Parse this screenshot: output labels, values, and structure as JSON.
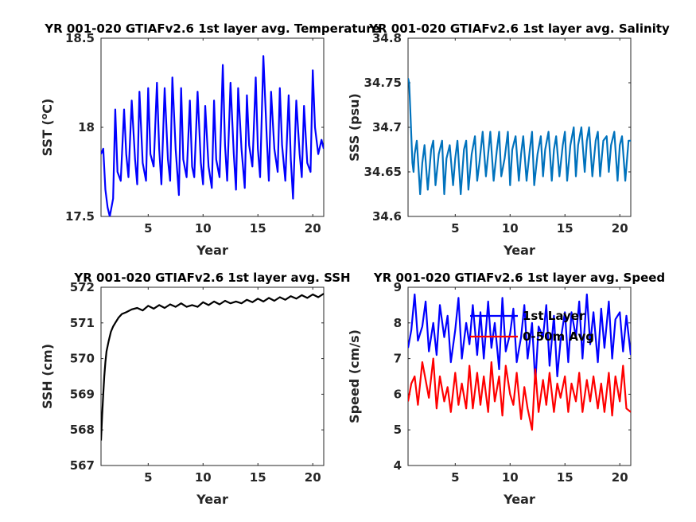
{
  "chart_data": [
    {
      "type": "line",
      "title": "YR 001-020 GTIAFv2.6 1st layer avg. Temperature",
      "xlabel": "Year",
      "ylabel": "SST (",
      "ylabel_super": "o",
      "ylabel_tail": "C)",
      "xlim": [
        0.7,
        21
      ],
      "ylim": [
        17.5,
        18.5
      ],
      "xticks": [
        5,
        10,
        15,
        20
      ],
      "yticks": [
        17.5,
        18,
        18.5
      ],
      "ytick_labels": [
        "17.5",
        "18",
        "18.5"
      ],
      "color": "#0000ff",
      "series": [
        {
          "x": [
            0.7,
            0.9,
            1.1,
            1.3,
            1.5,
            1.8,
            2.0,
            2.2,
            2.5,
            2.8,
            3.0,
            3.2,
            3.5,
            3.8,
            4.0,
            4.2,
            4.5,
            4.8,
            5.0,
            5.2,
            5.5,
            5.8,
            6.0,
            6.2,
            6.5,
            6.8,
            7.0,
            7.2,
            7.5,
            7.8,
            8.0,
            8.2,
            8.5,
            8.8,
            9.0,
            9.2,
            9.5,
            9.8,
            10.0,
            10.2,
            10.5,
            10.8,
            11.0,
            11.2,
            11.5,
            11.8,
            12.0,
            12.2,
            12.5,
            12.8,
            13.0,
            13.2,
            13.5,
            13.8,
            14.0,
            14.2,
            14.5,
            14.8,
            15.0,
            15.2,
            15.5,
            15.8,
            16.0,
            16.2,
            16.5,
            16.8,
            17.0,
            17.2,
            17.5,
            17.8,
            18.0,
            18.2,
            18.5,
            18.8,
            19.0,
            19.2,
            19.5,
            19.8,
            20.0,
            20.2,
            20.5,
            20.8,
            21.0
          ],
          "y": [
            17.85,
            17.88,
            17.65,
            17.55,
            17.5,
            17.6,
            18.1,
            17.75,
            17.7,
            18.1,
            17.85,
            17.72,
            18.15,
            17.82,
            17.68,
            18.2,
            17.8,
            17.7,
            18.22,
            17.85,
            17.78,
            18.25,
            17.88,
            17.68,
            18.22,
            17.82,
            17.7,
            18.28,
            17.88,
            17.62,
            18.22,
            17.82,
            17.72,
            18.15,
            17.78,
            17.72,
            18.2,
            17.8,
            17.68,
            18.12,
            17.78,
            17.66,
            18.15,
            17.82,
            17.72,
            18.35,
            17.9,
            17.7,
            18.25,
            17.85,
            17.65,
            18.22,
            17.88,
            17.66,
            18.18,
            17.9,
            17.78,
            18.28,
            17.88,
            17.72,
            18.4,
            17.95,
            17.7,
            18.2,
            17.88,
            17.75,
            18.22,
            17.9,
            17.7,
            18.18,
            17.82,
            17.6,
            18.15,
            17.85,
            17.72,
            18.12,
            17.8,
            17.75,
            18.32,
            18.0,
            17.85,
            17.93,
            17.88
          ]
        }
      ]
    },
    {
      "type": "line",
      "title": "YR 001-020 GTIAFv2.6 1st layer avg. Salinity",
      "xlabel": "Year",
      "ylabel": "SSS (psu)",
      "xlim": [
        0.7,
        21
      ],
      "ylim": [
        34.6,
        34.8
      ],
      "xticks": [
        5,
        10,
        15,
        20
      ],
      "yticks": [
        34.6,
        34.65,
        34.7,
        34.75,
        34.8
      ],
      "ytick_labels": [
        "34.6",
        "34.65",
        "34.7",
        "34.75",
        "34.8"
      ],
      "color": "#0072bd",
      "series": [
        {
          "x": [
            0.7,
            0.8,
            0.9,
            1.0,
            1.1,
            1.2,
            1.3,
            1.5,
            1.8,
            2.0,
            2.2,
            2.5,
            2.8,
            3.0,
            3.2,
            3.5,
            3.8,
            4.0,
            4.2,
            4.5,
            4.8,
            5.0,
            5.2,
            5.5,
            5.8,
            6.0,
            6.2,
            6.5,
            6.8,
            7.0,
            7.2,
            7.5,
            7.8,
            8.0,
            8.2,
            8.5,
            8.8,
            9.0,
            9.2,
            9.5,
            9.8,
            10.0,
            10.2,
            10.5,
            10.8,
            11.0,
            11.2,
            11.5,
            11.8,
            12.0,
            12.2,
            12.5,
            12.8,
            13.0,
            13.2,
            13.5,
            13.8,
            14.0,
            14.2,
            14.5,
            14.8,
            15.0,
            15.2,
            15.5,
            15.8,
            16.0,
            16.2,
            16.5,
            16.8,
            17.0,
            17.2,
            17.5,
            17.8,
            18.0,
            18.2,
            18.5,
            18.8,
            19.0,
            19.2,
            19.5,
            19.8,
            20.0,
            20.2,
            20.5,
            20.8,
            21.0
          ],
          "y": [
            34.755,
            34.75,
            34.72,
            34.69,
            34.66,
            34.65,
            34.67,
            34.685,
            34.625,
            34.66,
            34.68,
            34.63,
            34.675,
            34.685,
            34.635,
            34.67,
            34.685,
            34.625,
            34.665,
            34.68,
            34.635,
            34.665,
            34.685,
            34.625,
            34.675,
            34.685,
            34.63,
            34.67,
            34.69,
            34.64,
            34.66,
            34.695,
            34.645,
            34.67,
            34.695,
            34.64,
            34.675,
            34.695,
            34.645,
            34.665,
            34.695,
            34.635,
            34.675,
            34.69,
            34.64,
            34.67,
            34.69,
            34.64,
            34.675,
            34.695,
            34.635,
            34.67,
            34.69,
            34.645,
            34.675,
            34.695,
            34.64,
            34.675,
            34.69,
            34.645,
            34.68,
            34.695,
            34.64,
            34.68,
            34.7,
            34.645,
            34.68,
            34.7,
            34.65,
            34.685,
            34.7,
            34.645,
            34.685,
            34.695,
            34.645,
            34.685,
            34.69,
            34.65,
            34.68,
            34.695,
            34.64,
            34.68,
            34.69,
            34.64,
            34.685,
            34.685
          ]
        }
      ]
    },
    {
      "type": "line",
      "title": "YR 001-020 GTIAFv2.6 1st layer avg. SSH",
      "xlabel": "Year",
      "ylabel": "SSH (cm)",
      "xlim": [
        0.7,
        21
      ],
      "ylim": [
        567,
        572
      ],
      "xticks": [
        5,
        10,
        15,
        20
      ],
      "yticks": [
        567,
        568,
        569,
        570,
        571,
        572
      ],
      "ytick_labels": [
        "567",
        "568",
        "569",
        "570",
        "571",
        "572"
      ],
      "color": "#000000",
      "series": [
        {
          "x": [
            0.7,
            0.8,
            0.9,
            1.0,
            1.1,
            1.2,
            1.4,
            1.6,
            1.8,
            2.0,
            2.3,
            2.6,
            3.0,
            3.5,
            4.0,
            4.5,
            5.0,
            5.5,
            6.0,
            6.5,
            7.0,
            7.5,
            8.0,
            8.5,
            9.0,
            9.5,
            10.0,
            10.5,
            11.0,
            11.5,
            12.0,
            12.5,
            13.0,
            13.5,
            14.0,
            14.5,
            15.0,
            15.5,
            16.0,
            16.5,
            17.0,
            17.5,
            18.0,
            18.5,
            19.0,
            19.5,
            20.0,
            20.5,
            21.0
          ],
          "y": [
            567.7,
            568.4,
            569.0,
            569.5,
            569.9,
            570.2,
            570.5,
            570.75,
            570.9,
            571.0,
            571.15,
            571.25,
            571.3,
            571.38,
            571.42,
            571.35,
            571.48,
            571.4,
            571.5,
            571.42,
            571.52,
            571.45,
            571.55,
            571.45,
            571.5,
            571.45,
            571.58,
            571.5,
            571.6,
            571.52,
            571.62,
            571.55,
            571.6,
            571.55,
            571.65,
            571.58,
            571.68,
            571.6,
            571.7,
            571.62,
            571.72,
            571.65,
            571.75,
            571.68,
            571.78,
            571.7,
            571.8,
            571.72,
            571.82
          ]
        }
      ]
    },
    {
      "type": "line",
      "title": "YR 001-020 GTIAFv2.6 1st layer avg. Speed",
      "xlabel": "Year",
      "ylabel": "Speed (cm/s)",
      "xlim": [
        0.7,
        21
      ],
      "ylim": [
        4,
        9
      ],
      "xticks": [
        5,
        10,
        15,
        20
      ],
      "yticks": [
        4,
        5,
        6,
        7,
        8,
        9
      ],
      "ytick_labels": [
        "4",
        "5",
        "6",
        "7",
        "8",
        "9"
      ],
      "legend": [
        "1st Layer",
        "0-50m Avg"
      ],
      "legend_placement": "top-right",
      "series": [
        {
          "name": "1st Layer",
          "color": "#0000ff",
          "x": [
            0.7,
            1.0,
            1.3,
            1.6,
            2.0,
            2.3,
            2.6,
            3.0,
            3.3,
            3.6,
            4.0,
            4.3,
            4.6,
            5.0,
            5.3,
            5.6,
            6.0,
            6.3,
            6.6,
            7.0,
            7.3,
            7.6,
            8.0,
            8.3,
            8.6,
            9.0,
            9.3,
            9.6,
            10.0,
            10.3,
            10.6,
            11.0,
            11.3,
            11.6,
            12.0,
            12.3,
            12.6,
            13.0,
            13.3,
            13.6,
            14.0,
            14.3,
            14.6,
            15.0,
            15.3,
            15.6,
            16.0,
            16.3,
            16.6,
            17.0,
            17.3,
            17.6,
            18.0,
            18.3,
            18.6,
            19.0,
            19.3,
            19.6,
            20.0,
            20.3,
            20.6,
            21.0
          ],
          "y": [
            7.3,
            7.8,
            8.8,
            7.5,
            7.9,
            8.6,
            7.2,
            8.0,
            7.1,
            8.5,
            7.6,
            8.2,
            6.9,
            7.8,
            8.7,
            7.0,
            8.0,
            7.4,
            8.5,
            7.1,
            8.3,
            7.0,
            8.6,
            7.3,
            8.0,
            6.7,
            8.7,
            7.2,
            7.7,
            8.4,
            6.9,
            7.6,
            8.5,
            7.0,
            8.0,
            6.3,
            7.9,
            7.6,
            8.5,
            6.8,
            8.2,
            6.5,
            7.5,
            8.3,
            6.9,
            8.3,
            7.6,
            8.6,
            7.0,
            8.8,
            7.4,
            8.3,
            6.9,
            8.4,
            7.3,
            8.6,
            7.0,
            8.1,
            8.3,
            7.2,
            8.2,
            7.1
          ]
        },
        {
          "name": "0-50m Avg",
          "color": "#ff0000",
          "x": [
            0.7,
            1.0,
            1.3,
            1.6,
            2.0,
            2.3,
            2.6,
            3.0,
            3.3,
            3.6,
            4.0,
            4.3,
            4.6,
            5.0,
            5.3,
            5.6,
            6.0,
            6.3,
            6.6,
            7.0,
            7.3,
            7.6,
            8.0,
            8.3,
            8.6,
            9.0,
            9.3,
            9.6,
            10.0,
            10.3,
            10.6,
            11.0,
            11.3,
            11.6,
            12.0,
            12.3,
            12.6,
            13.0,
            13.3,
            13.6,
            14.0,
            14.3,
            14.6,
            15.0,
            15.3,
            15.6,
            16.0,
            16.3,
            16.6,
            17.0,
            17.3,
            17.6,
            18.0,
            18.3,
            18.6,
            19.0,
            19.3,
            19.6,
            20.0,
            20.3,
            20.6,
            21.0
          ],
          "y": [
            5.8,
            6.3,
            6.5,
            5.7,
            6.9,
            6.4,
            5.9,
            7.0,
            5.6,
            6.5,
            5.8,
            6.2,
            5.5,
            6.6,
            5.7,
            6.3,
            5.6,
            6.8,
            5.6,
            6.6,
            5.7,
            6.5,
            5.5,
            6.9,
            5.8,
            6.5,
            5.4,
            6.8,
            6.0,
            5.7,
            6.6,
            5.3,
            6.2,
            5.6,
            5.0,
            6.7,
            5.5,
            6.4,
            5.7,
            6.6,
            5.5,
            6.3,
            5.9,
            6.5,
            5.5,
            6.3,
            5.8,
            6.6,
            5.5,
            6.4,
            5.8,
            6.5,
            5.6,
            6.3,
            5.5,
            6.6,
            5.4,
            6.5,
            5.8,
            6.8,
            5.6,
            5.5
          ]
        }
      ]
    }
  ]
}
